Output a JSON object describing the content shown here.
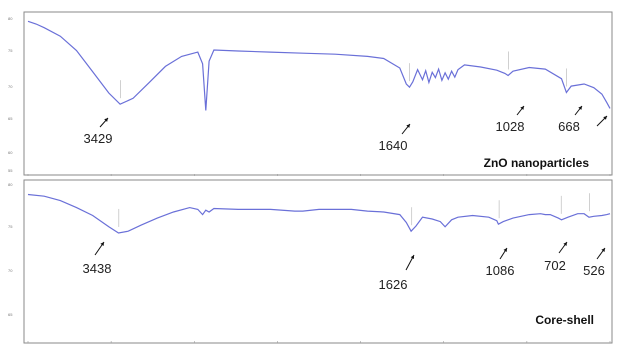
{
  "colors": {
    "spectrum": "#6a70d8",
    "frame": "#8a8a8a",
    "text": "#222222",
    "background": "#ffffff"
  },
  "chart_data": [
    {
      "type": "line",
      "panel_label": "ZnO nanoparticles",
      "xlim": [
        4000,
        400
      ],
      "y_ticks": [
        "80",
        "75",
        "70",
        "65",
        "60",
        "55"
      ],
      "annotations": [
        {
          "label": "3429",
          "x": 3429,
          "y": 64.4
        },
        {
          "label": "1640",
          "x": 1640,
          "y": 67.6
        },
        {
          "label": "1028",
          "x": 1028,
          "y": 69.8
        },
        {
          "label": "668",
          "x": 668,
          "y": 66.6
        }
      ],
      "unlabeled_arrows": [
        {
          "x": 430,
          "y": 64.7
        }
      ],
      "series": [
        {
          "x": [
            4000,
            3950,
            3900,
            3800,
            3700,
            3600,
            3500,
            3430,
            3350,
            3250,
            3150,
            3050,
            2950,
            2920,
            2900,
            2880,
            2850,
            2700,
            2500,
            2300,
            2100,
            1900,
            1800,
            1700,
            1660,
            1640,
            1620,
            1590,
            1560,
            1540,
            1520,
            1500,
            1480,
            1460,
            1440,
            1420,
            1400,
            1380,
            1360,
            1340,
            1300,
            1200,
            1100,
            1050,
            1030,
            1000,
            900,
            800,
            700,
            670,
            640,
            560,
            500,
            450,
            420,
            400
          ],
          "y": [
            80.0,
            79.5,
            78.8,
            77.2,
            74.5,
            70.5,
            66.5,
            64.4,
            65.5,
            68.5,
            71.5,
            73.4,
            74.2,
            72.0,
            63.2,
            72.5,
            74.6,
            74.4,
            74.2,
            74.0,
            73.8,
            73.4,
            73.0,
            71.2,
            68.2,
            67.6,
            68.6,
            70.9,
            69.0,
            70.7,
            68.5,
            70.4,
            69.4,
            71.0,
            68.9,
            70.3,
            69.1,
            70.6,
            69.5,
            70.9,
            71.8,
            71.4,
            70.8,
            70.2,
            69.8,
            70.6,
            71.3,
            71.0,
            69.2,
            66.6,
            67.8,
            68.2,
            67.5,
            66.3,
            64.7,
            63.6
          ]
        }
      ]
    },
    {
      "type": "line",
      "panel_label": "Core-shell",
      "xlim": [
        4000,
        400
      ],
      "y_ticks": [
        "80",
        "75",
        "70",
        "65"
      ],
      "annotations": [
        {
          "label": "3438",
          "x": 3438,
          "y": 74.9
        },
        {
          "label": "1626",
          "x": 1626,
          "y": 75.1
        },
        {
          "label": "1086",
          "x": 1086,
          "y": 75.9
        },
        {
          "label": "702",
          "x": 702,
          "y": 76.4
        },
        {
          "label": "526",
          "x": 526,
          "y": 76.7
        }
      ],
      "series": [
        {
          "x": [
            4000,
            3900,
            3800,
            3700,
            3600,
            3500,
            3440,
            3380,
            3300,
            3200,
            3100,
            3000,
            2950,
            2920,
            2900,
            2880,
            2850,
            2700,
            2500,
            2350,
            2300,
            2200,
            2000,
            1900,
            1800,
            1700,
            1660,
            1630,
            1600,
            1560,
            1500,
            1450,
            1420,
            1380,
            1340,
            1250,
            1150,
            1100,
            1090,
            1060,
            1000,
            900,
            830,
            800,
            770,
            720,
            700,
            660,
            600,
            560,
            530,
            500,
            450,
            420,
            400
          ],
          "y": [
            79.3,
            79.1,
            78.6,
            77.8,
            76.9,
            75.6,
            74.9,
            75.1,
            75.8,
            76.6,
            77.3,
            77.8,
            77.6,
            77.0,
            77.5,
            77.3,
            77.7,
            77.6,
            77.6,
            77.4,
            77.4,
            77.6,
            77.6,
            77.4,
            77.3,
            77.0,
            76.1,
            75.1,
            75.7,
            76.7,
            76.5,
            76.2,
            75.6,
            76.4,
            76.7,
            76.9,
            76.7,
            76.3,
            75.9,
            76.2,
            76.6,
            77.0,
            77.1,
            77.0,
            77.0,
            76.6,
            76.4,
            76.7,
            77.1,
            77.1,
            76.7,
            76.8,
            76.9,
            77.0,
            77.1
          ]
        }
      ]
    }
  ]
}
